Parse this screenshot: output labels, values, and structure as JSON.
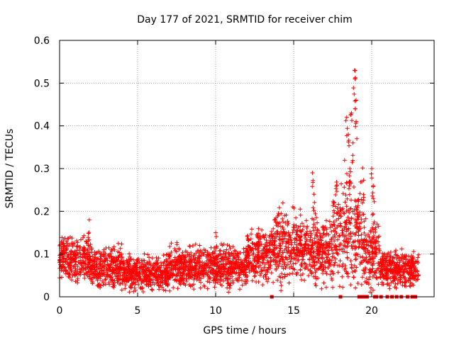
{
  "chart_data": {
    "type": "scatter",
    "title": "Day 177 of 2021, SRMTID for receiver chim",
    "xlabel": "GPS time / hours",
    "ylabel": "SRMTID / TECUs",
    "xlim": [
      0,
      24
    ],
    "ylim": [
      0,
      0.6
    ],
    "grid": true,
    "x_ticks": [
      0,
      5,
      10,
      15,
      20
    ],
    "x_tick_labels": [
      "0",
      "5",
      "10",
      "15",
      "20"
    ],
    "y_ticks": [
      0,
      0.1,
      0.2,
      0.3,
      0.4,
      0.5,
      0.6
    ],
    "y_tick_labels": [
      "0",
      "0.1",
      "0.2",
      "0.3",
      "0.4",
      "0.5",
      "0.6"
    ],
    "series": [
      {
        "name": "SRMTID",
        "color": "#ff0000",
        "marker": "plus",
        "description_profile": [
          {
            "x": [
              0.0,
              2.0
            ],
            "y_mean": 0.085,
            "y_spread": 0.04
          },
          {
            "x": [
              2.0,
              4.0
            ],
            "y_mean": 0.07,
            "y_spread": 0.035
          },
          {
            "x": [
              4.0,
              7.0
            ],
            "y_mean": 0.055,
            "y_spread": 0.03
          },
          {
            "x": [
              7.0,
              10.0
            ],
            "y_mean": 0.07,
            "y_spread": 0.035
          },
          {
            "x": [
              10.0,
              12.0
            ],
            "y_mean": 0.07,
            "y_spread": 0.035
          },
          {
            "x": [
              12.0,
              13.5
            ],
            "y_mean": 0.095,
            "y_spread": 0.045
          },
          {
            "x": [
              13.5,
              15.5
            ],
            "y_mean": 0.12,
            "y_spread": 0.06
          },
          {
            "x": [
              15.5,
              17.5
            ],
            "y_mean": 0.11,
            "y_spread": 0.06
          },
          {
            "x": [
              17.5,
              19.5
            ],
            "y_mean": 0.15,
            "y_spread": 0.1
          },
          {
            "x": [
              19.5,
              20.5
            ],
            "y_mean": 0.1,
            "y_spread": 0.06
          },
          {
            "x": [
              20.5,
              23.0
            ],
            "y_mean": 0.065,
            "y_spread": 0.03
          }
        ],
        "peaks": [
          {
            "x": 1.9,
            "y": 0.18
          },
          {
            "x": 10.0,
            "y": 0.15
          },
          {
            "x": 16.2,
            "y": 0.29
          },
          {
            "x": 16.3,
            "y": 0.24
          },
          {
            "x": 18.4,
            "y": 0.42
          },
          {
            "x": 18.5,
            "y": 0.38
          },
          {
            "x": 18.7,
            "y": 0.43
          },
          {
            "x": 18.9,
            "y": 0.53
          },
          {
            "x": 18.95,
            "y": 0.51
          },
          {
            "x": 19.0,
            "y": 0.46
          },
          {
            "x": 19.0,
            "y": 0.41
          },
          {
            "x": 18.8,
            "y": 0.36
          },
          {
            "x": 18.6,
            "y": 0.3
          },
          {
            "x": 20.0,
            "y": 0.3
          },
          {
            "x": 20.1,
            "y": 0.26
          },
          {
            "x": 20.1,
            "y": 0.23
          }
        ],
        "zero_points": [
          13.6,
          18.0,
          19.2,
          19.3,
          19.5,
          19.7,
          20.2,
          20.3,
          20.6,
          21.0,
          21.3,
          21.6,
          21.9,
          22.3,
          22.6,
          22.8
        ]
      }
    ]
  }
}
